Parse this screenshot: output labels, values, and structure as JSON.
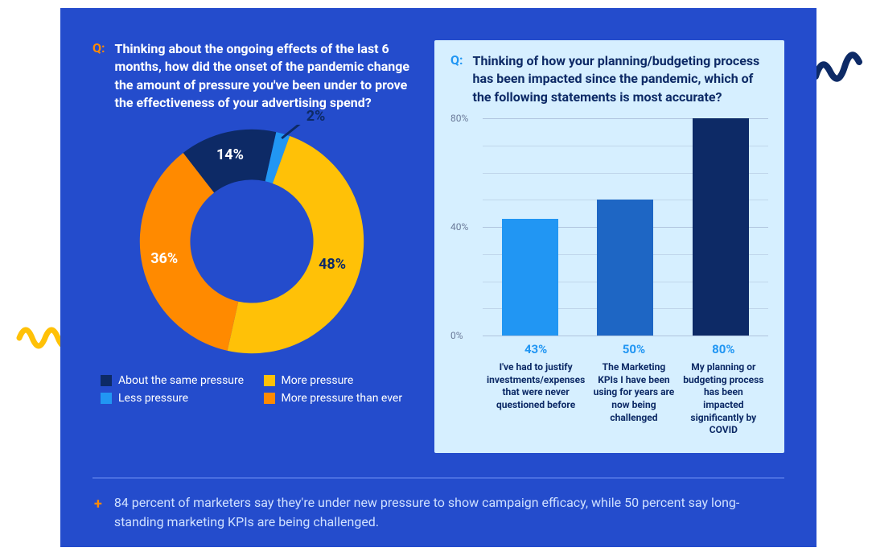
{
  "card": {
    "bg": "#244ccc",
    "right_panel_bg": "#d6efff",
    "divider_color": "#4a6fe0",
    "summary_plus_color": "#ff8a00",
    "summary_text_color": "#cfe0ff",
    "summary_text": "84 percent of marketers say they're under new pressure to show campaign efficacy, while 50 percent say long-standing marketing KPIs are being challenged."
  },
  "donut": {
    "q_label": "Q:",
    "q_label_color": "#ff8a00",
    "question": "Thinking about the ongoing effects of the last 6 months, how did the onset of the pandemic change the amount of pressure you've been under to prove the effectiveness of your advertising spend?",
    "slices": [
      {
        "label": "About the same pressure",
        "value": 14,
        "label_text": "14%",
        "color": "#0d2a66",
        "text_color": "#ffffff"
      },
      {
        "label": "Less pressure",
        "value": 2,
        "label_text": "2%",
        "color": "#2196f3",
        "text_color": "#0d2a66"
      },
      {
        "label": "More pressure",
        "value": 48,
        "label_text": "48%",
        "color": "#ffc107",
        "text_color": "#0d2a66"
      },
      {
        "label": "More pressure than ever",
        "value": 36,
        "label_text": "36%",
        "color": "#ff8a00",
        "text_color": "#ffffff"
      }
    ],
    "inner_ratio": 0.55,
    "legend_text_color": "#ffffff"
  },
  "bar": {
    "q_label": "Q:",
    "q_label_color": "#2196f3",
    "q_text_color": "#0d2a66",
    "question": "Thinking of how your planning/budgeting process has been impacted since the pandemic, which of the following statements is most accurate?",
    "y_max": 80,
    "y_ticks": [
      0,
      40,
      80
    ],
    "y_tick_format": "{v}%",
    "axis_label_color": "#6b7a99",
    "grid_color": "#b0c4de",
    "bars": [
      {
        "pct": "43%",
        "value": 43,
        "color": "#2196f3",
        "text": "I've had to justify investments/expenses that were never questioned before"
      },
      {
        "pct": "50%",
        "value": 50,
        "color": "#1e66c4",
        "text": "The Marketing KPIs I have been using for years are now being challenged"
      },
      {
        "pct": "80%",
        "value": 80,
        "color": "#0d2a66",
        "text": "My planning or budgeting process has been impacted significantly by COVID"
      }
    ],
    "pct_color": "#2196f3",
    "bar_text_color": "#0d2a66"
  },
  "squiggles": {
    "left": {
      "color": "#ffc107"
    },
    "right": {
      "color": "#0d2a66"
    }
  }
}
